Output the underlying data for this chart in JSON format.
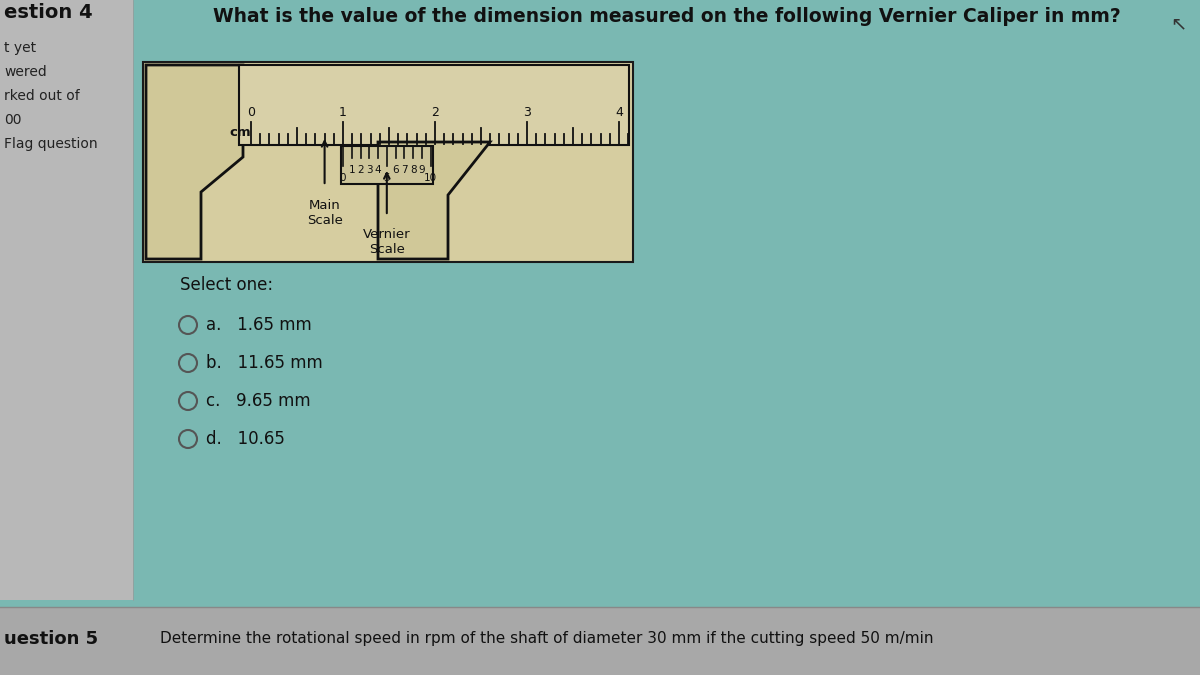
{
  "bg_left": "#b8b8b8",
  "bg_right": "#7ab8b2",
  "bg_bottom": "#a8a8a8",
  "title": "What is the value of the dimension measured on the following Vernier Caliper in mm?",
  "q_label": "estion 4",
  "left_items": [
    "t yet",
    "wered",
    "rked out of",
    "00",
    "Flag question"
  ],
  "caliper_bg": "#d6cda0",
  "caliper_border": "#1a1a1a",
  "select_one": "Select one:",
  "options": [
    {
      "key": "a.",
      "val": "1.65 mm"
    },
    {
      "key": "b.",
      "val": "11.65 mm"
    },
    {
      "key": "c.",
      "val": "9.65 mm"
    },
    {
      "key": "d.",
      "val": "10.65"
    }
  ],
  "q5_label": "uestion 5",
  "bottom_text": "Determine the rotational speed in rpm of the shaft of diameter 30 mm if the cutting speed 50 m/min",
  "cm_label": "cm",
  "main_scale_label": "Main\nScale",
  "vernier_scale_label": "Vernier\nScale",
  "tick_color": "#111111",
  "jaw_color": "#d0c898",
  "scale_bar_color": "#d8d0a8"
}
